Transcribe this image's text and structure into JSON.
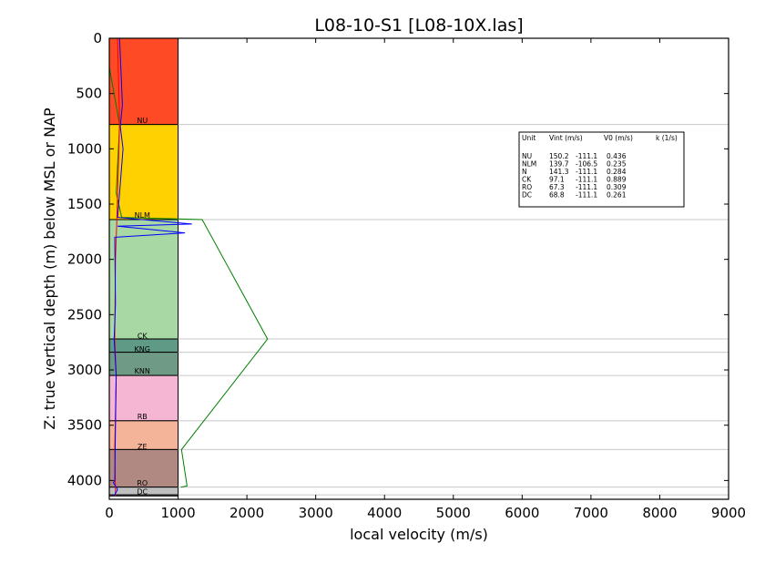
{
  "chart_data": {
    "type": "line",
    "title": "L08-10-S1 [L08-10X.las]",
    "xlabel": "local velocity (m/s)",
    "ylabel": "Z: true vertical depth (m) below MSL or NAP",
    "xlim": [
      0,
      9000
    ],
    "ylim": [
      4170,
      0
    ],
    "y_inverted": true,
    "xticks": [
      "0",
      "1000",
      "2000",
      "3000",
      "4000",
      "5000",
      "6000",
      "7000",
      "8000",
      "9000"
    ],
    "yticks": [
      "0",
      "500",
      "1000",
      "1500",
      "2000",
      "2500",
      "3000",
      "3500",
      "4000"
    ],
    "units": [
      {
        "name": "",
        "top": 0,
        "bottom": 780,
        "color": "#ff4a26"
      },
      {
        "name": "NU",
        "top": 780,
        "bottom": 1640,
        "color": "#ffd100"
      },
      {
        "name": "NLM",
        "top": 1640,
        "bottom": 2720,
        "color": "#a8d8a4"
      },
      {
        "name": "CK",
        "top": 2720,
        "bottom": 2840,
        "color": "#5f9a86"
      },
      {
        "name": "KNG",
        "top": 2840,
        "bottom": 3050,
        "color": "#6f9a86"
      },
      {
        "name": "KNN",
        "top": 3050,
        "bottom": 3460,
        "color": "#f4b6d2"
      },
      {
        "name": "RB",
        "top": 3460,
        "bottom": 3720,
        "color": "#f4b49a"
      },
      {
        "name": "ZE",
        "top": 3720,
        "bottom": 4060,
        "color": "#b08a82"
      },
      {
        "name": "RO",
        "top": 4060,
        "bottom": 4130,
        "color": "#bfbfbf"
      },
      {
        "name": "DC",
        "top": 4130,
        "bottom": 4140,
        "color": "#bfbfbf"
      }
    ],
    "unit_label_depths": [
      {
        "name": "NU",
        "depth": 740
      },
      {
        "name": "NLM",
        "depth": 1600
      },
      {
        "name": "CK",
        "depth": 2690
      },
      {
        "name": "KNG",
        "depth": 2810
      },
      {
        "name": "KNN",
        "depth": 3010
      },
      {
        "name": "RB",
        "depth": 3420
      },
      {
        "name": "ZE",
        "depth": 3690
      },
      {
        "name": "RO",
        "depth": 4020
      },
      {
        "name": "DC",
        "depth": 4100
      }
    ],
    "unit_box_velocity": 1000,
    "series": [
      {
        "color": "#008000",
        "x": [
          0,
          150,
          100,
          180,
          1350,
          2300,
          1050,
          1130,
          1040
        ],
        "y": [
          260,
          780,
          1400,
          1620,
          1640,
          2720,
          3720,
          4050,
          4060
        ]
      },
      {
        "color": "#ff0000",
        "x": [
          120,
          150,
          110,
          90,
          80,
          100,
          80,
          90
        ],
        "y": [
          0,
          780,
          1640,
          2000,
          2720,
          3050,
          3720,
          4140
        ]
      },
      {
        "color": "#0000ff",
        "x": [
          150,
          190,
          160,
          200,
          150,
          120,
          1200,
          120,
          1100,
          80,
          90,
          70,
          100,
          90,
          80,
          60,
          120,
          70
        ],
        "y": [
          0,
          600,
          800,
          1000,
          1400,
          1620,
          1680,
          1700,
          1760,
          1800,
          2400,
          2720,
          3050,
          3500,
          4000,
          4020,
          4080,
          4140
        ]
      }
    ],
    "legend": {
      "position": "top-right",
      "header": [
        "Unit",
        "Vint (m/s)",
        "V0 (m/s)",
        "k (1/s)"
      ],
      "rows": [
        [
          "NU",
          "150.2",
          "-111.1",
          "0.436"
        ],
        [
          "NLM",
          "139.7",
          "-106.5",
          "0.235"
        ],
        [
          "N",
          "141.3",
          "-111.1",
          "0.284"
        ],
        [
          "CK",
          "97.1",
          "-111.1",
          "0.889"
        ],
        [
          "RO",
          "67.3",
          "-111.1",
          "0.309"
        ],
        [
          "DC",
          "68.8",
          "-111.1",
          "0.261"
        ]
      ]
    },
    "boundary_lines": [
      780,
      1640,
      2720,
      2840,
      3050,
      3460,
      3720,
      4060,
      4130
    ]
  }
}
